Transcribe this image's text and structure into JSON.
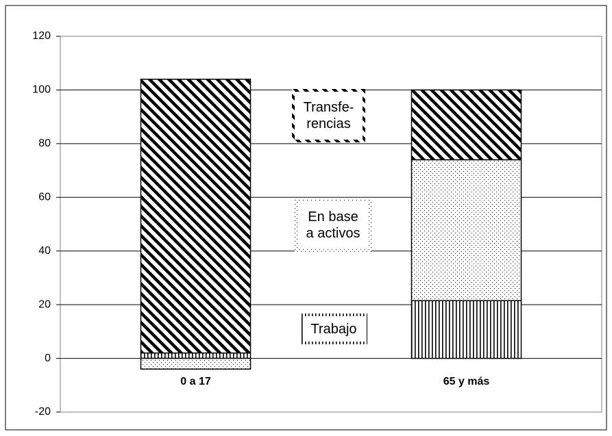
{
  "chart_data": {
    "type": "stacked-bar",
    "categories": [
      "0 a 17",
      "65 y más"
    ],
    "series": [
      {
        "name": "Trabajo",
        "pattern": "vertical",
        "values": [
          2,
          21.5
        ]
      },
      {
        "name": "En base\na activos",
        "pattern": "dots",
        "values": [
          -4,
          52.5
        ]
      },
      {
        "name": "Transfe-\nrencias",
        "pattern": "diagonal",
        "values": [
          102,
          26
        ]
      }
    ],
    "ylim": [
      -20,
      120
    ],
    "yticks": [
      -20,
      0,
      20,
      40,
      60,
      80,
      100,
      120
    ],
    "grid": true
  }
}
